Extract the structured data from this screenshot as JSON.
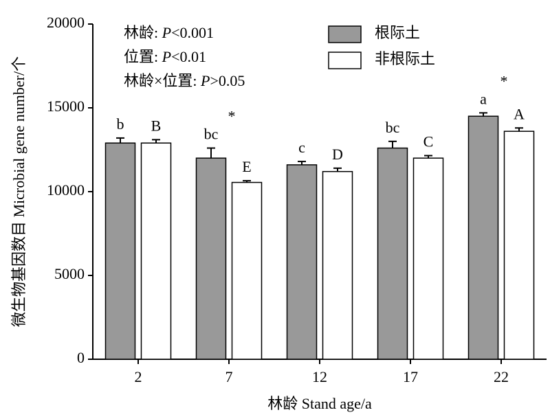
{
  "chart_data": {
    "type": "bar",
    "categories": [
      "2",
      "7",
      "12",
      "17",
      "22"
    ],
    "series": [
      {
        "name": "根际土",
        "color": "#999999",
        "values": [
          12900,
          12000,
          11600,
          12600,
          14500
        ],
        "errors": [
          300,
          600,
          200,
          400,
          200
        ],
        "letters": [
          "b",
          "bc",
          "c",
          "bc",
          "a"
        ]
      },
      {
        "name": "非根际土",
        "color": "#ffffff",
        "values": [
          12900,
          10550,
          11200,
          12000,
          13600
        ],
        "errors": [
          200,
          100,
          200,
          150,
          200
        ],
        "letters": [
          "B",
          "E",
          "D",
          "C",
          "A"
        ]
      }
    ],
    "stars": [
      null,
      "*",
      null,
      null,
      "*"
    ],
    "annotations": [
      [
        "林龄: ",
        "P",
        "<0.001"
      ],
      [
        "位置: ",
        "P",
        "<0.01"
      ],
      [
        "林龄×位置: ",
        "P",
        ">0.05"
      ]
    ],
    "ylabel": "微生物基因数目 Microbial gene number/个",
    "xlabel": "林龄 Stand age/a",
    "ylim": [
      0,
      20000
    ],
    "yticks": [
      0,
      5000,
      10000,
      15000,
      20000
    ],
    "legend": "top-right"
  }
}
